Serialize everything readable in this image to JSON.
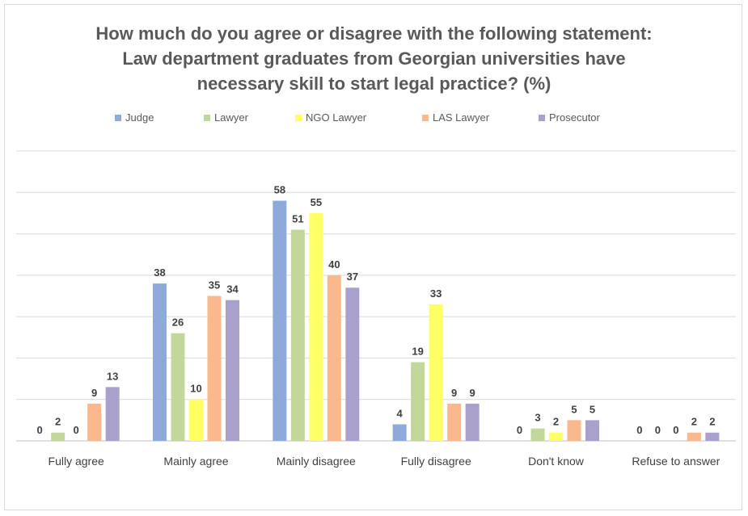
{
  "chart_data": {
    "type": "bar",
    "title_lines": [
      "How much do you agree or disagree with the following statement:",
      "Law department graduates from Georgian universities have",
      "necessary skill to start legal practice? (%)"
    ],
    "categories": [
      "Fully agree",
      "Mainly agree",
      "Mainly disagree",
      "Fully disagree",
      "Don't know",
      "Refuse to answer"
    ],
    "series": [
      {
        "name": "Judge",
        "color": "#8eaadb",
        "values": [
          0,
          38,
          58,
          4,
          0,
          0
        ]
      },
      {
        "name": "Lawyer",
        "color": "#c4d79b",
        "values": [
          2,
          26,
          51,
          19,
          3,
          0
        ]
      },
      {
        "name": "NGO Lawyer",
        "color": "#ffff66",
        "values": [
          0,
          10,
          55,
          33,
          2,
          0
        ]
      },
      {
        "name": "LAS Lawyer",
        "color": "#f9b98d",
        "values": [
          9,
          35,
          40,
          9,
          5,
          2
        ]
      },
      {
        "name": "Prosecutor",
        "color": "#a9a1cc",
        "values": [
          13,
          34,
          37,
          9,
          5,
          2
        ]
      }
    ],
    "ylim": [
      0,
      70
    ],
    "grid": true,
    "legend_position": "top"
  }
}
